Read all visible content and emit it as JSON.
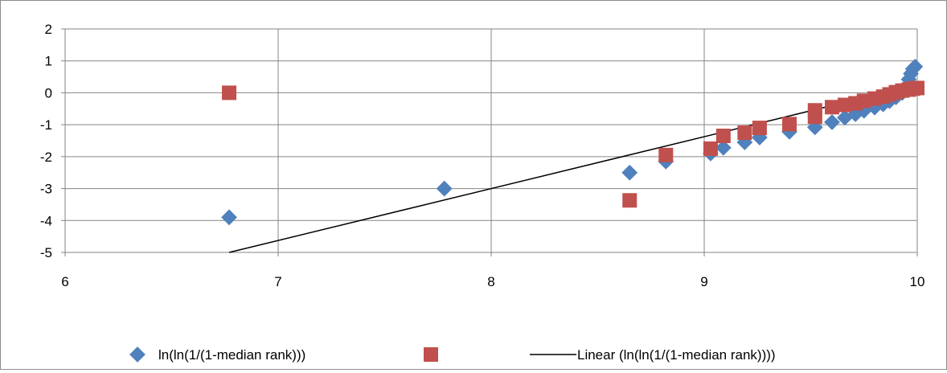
{
  "chart_data": {
    "type": "scatter",
    "title": "",
    "xlabel": "",
    "ylabel": "",
    "xlim": [
      6,
      10
    ],
    "ylim": [
      -5,
      2
    ],
    "x_ticks": [
      "6",
      "7",
      "8",
      "9",
      "10"
    ],
    "y_ticks": [
      "2",
      "1",
      "0",
      "-1",
      "-2",
      "-3",
      "-4",
      "-5"
    ],
    "grid": true,
    "legend_position": "bottom",
    "series": [
      {
        "name": "ln(ln(1/(1-median rank)))",
        "marker": "diamond",
        "color": "#4f81bd",
        "points": [
          [
            6.77,
            -3.9
          ],
          [
            7.78,
            -3.0
          ],
          [
            8.65,
            -2.5
          ],
          [
            8.82,
            -2.15
          ],
          [
            9.03,
            -1.9
          ],
          [
            9.09,
            -1.72
          ],
          [
            9.19,
            -1.55
          ],
          [
            9.26,
            -1.4
          ],
          [
            9.4,
            -1.22
          ],
          [
            9.52,
            -1.08
          ],
          [
            9.6,
            -0.92
          ],
          [
            9.66,
            -0.78
          ],
          [
            9.71,
            -0.67
          ],
          [
            9.75,
            -0.56
          ],
          [
            9.8,
            -0.46
          ],
          [
            9.84,
            -0.36
          ],
          [
            9.87,
            -0.26
          ],
          [
            9.9,
            -0.14
          ],
          [
            9.93,
            0.0
          ],
          [
            9.95,
            0.2
          ],
          [
            9.96,
            0.42
          ],
          [
            9.97,
            0.6
          ],
          [
            9.98,
            0.75
          ],
          [
            9.99,
            0.82
          ]
        ]
      },
      {
        "name": "",
        "marker": "square",
        "color": "#c0504d",
        "points": [
          [
            6.77,
            0.0
          ],
          [
            8.65,
            -3.37
          ],
          [
            8.82,
            -1.95
          ],
          [
            9.03,
            -1.75
          ],
          [
            9.09,
            -1.35
          ],
          [
            9.19,
            -1.25
          ],
          [
            9.26,
            -1.1
          ],
          [
            9.4,
            -0.98
          ],
          [
            9.52,
            -0.75
          ],
          [
            9.52,
            -0.55
          ],
          [
            9.6,
            -0.45
          ],
          [
            9.66,
            -0.38
          ],
          [
            9.71,
            -0.33
          ],
          [
            9.75,
            -0.25
          ],
          [
            9.8,
            -0.18
          ],
          [
            9.84,
            -0.12
          ],
          [
            9.87,
            -0.05
          ],
          [
            9.9,
            0.02
          ],
          [
            9.93,
            0.07
          ],
          [
            9.96,
            0.1
          ],
          [
            9.98,
            0.13
          ],
          [
            10.0,
            0.15
          ]
        ]
      }
    ],
    "trendline": {
      "name": "Linear (ln(ln(1/(1-median rank))))",
      "color": "#000000",
      "from": [
        6.77,
        -5.0
      ],
      "to": [
        10.0,
        0.25
      ]
    }
  }
}
